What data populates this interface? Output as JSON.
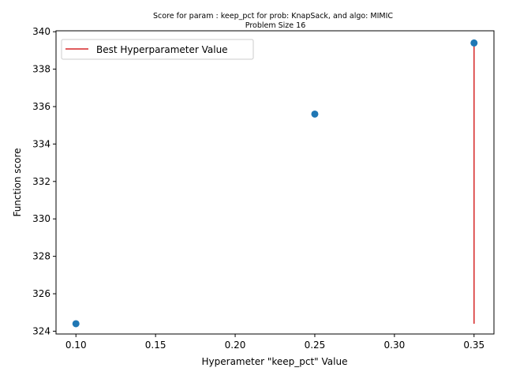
{
  "chart_data": {
    "type": "scatter",
    "title": "Score for param : keep_pct for prob: KnapSack, and algo: MIMIC",
    "subtitle": "Problem Size 16",
    "xlabel": "Hyperameter \"keep_pct\" Value",
    "ylabel": "Function score",
    "xlim": [
      0.0875,
      0.3625
    ],
    "ylim": [
      323.85,
      340.05
    ],
    "xticks": [
      0.1,
      0.15,
      0.2,
      0.25,
      0.3,
      0.35
    ],
    "xtick_labels": [
      "0.10",
      "0.15",
      "0.20",
      "0.25",
      "0.30",
      "0.35"
    ],
    "yticks": [
      324,
      326,
      328,
      330,
      332,
      334,
      336,
      338,
      340
    ],
    "ytick_labels": [
      "324",
      "326",
      "328",
      "330",
      "332",
      "334",
      "336",
      "338",
      "340"
    ],
    "grid": false,
    "legend_position": "top-left",
    "series": [
      {
        "kind": "scatter",
        "color": "#1f77b4",
        "x": [
          0.1,
          0.25,
          0.35
        ],
        "y": [
          324.4,
          335.6,
          339.4
        ]
      },
      {
        "kind": "vline",
        "name": "Best Hyperparameter Value",
        "color": "#d62728",
        "x": 0.35,
        "ymin": 324.4,
        "ymax": 339.4
      }
    ]
  }
}
